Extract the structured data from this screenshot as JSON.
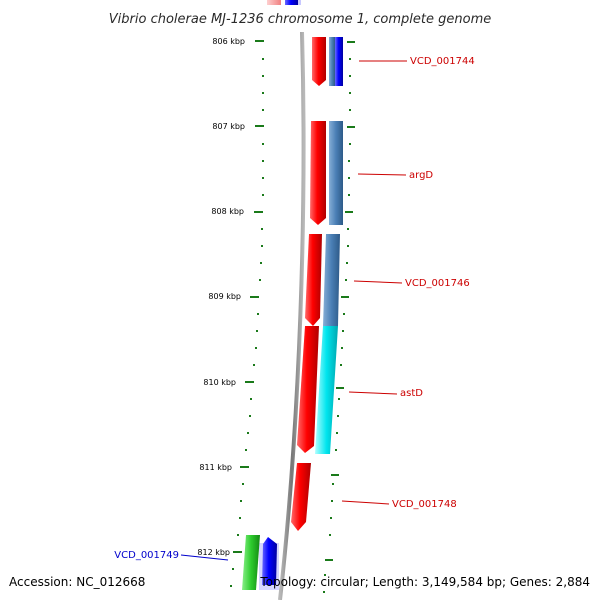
{
  "page": {
    "title": "Vibrio cholerae MJ-1236 chromosome 1, complete genome",
    "accession": "Accession: NC_012668",
    "summary": "Topology: circular; Length: 3,149,584 bp; Genes: 2,884"
  },
  "ruler": {
    "ticks": [
      {
        "label": "806 kbp",
        "kbp": 806
      },
      {
        "label": "807 kbp",
        "kbp": 807
      },
      {
        "label": "808 kbp",
        "kbp": 808
      },
      {
        "label": "809 kbp",
        "kbp": 809
      },
      {
        "label": "810 kbp",
        "kbp": 810
      },
      {
        "label": "811 kbp",
        "kbp": 811
      },
      {
        "label": "812 kbp",
        "kbp": 812
      }
    ]
  },
  "genes": [
    {
      "name": "VCD_001744",
      "color": "#cc0000"
    },
    {
      "name": "argD",
      "color": "#cc0000"
    },
    {
      "name": "VCD_001746",
      "color": "#cc0000"
    },
    {
      "name": "astD",
      "color": "#cc0000"
    },
    {
      "name": "VCD_001748",
      "color": "#cc0000"
    },
    {
      "name": "VCD_001749",
      "color": "#0000cc"
    }
  ],
  "colors": {
    "forward_cds": "#ff1010",
    "reverse_cds": "#1010ff",
    "cog_blue": "#4a7fb5",
    "cog_cyan": "#00e5ee",
    "cog_green": "#2ecc2e",
    "tick_green": "#1a7a1a",
    "backbone": "#808080"
  }
}
